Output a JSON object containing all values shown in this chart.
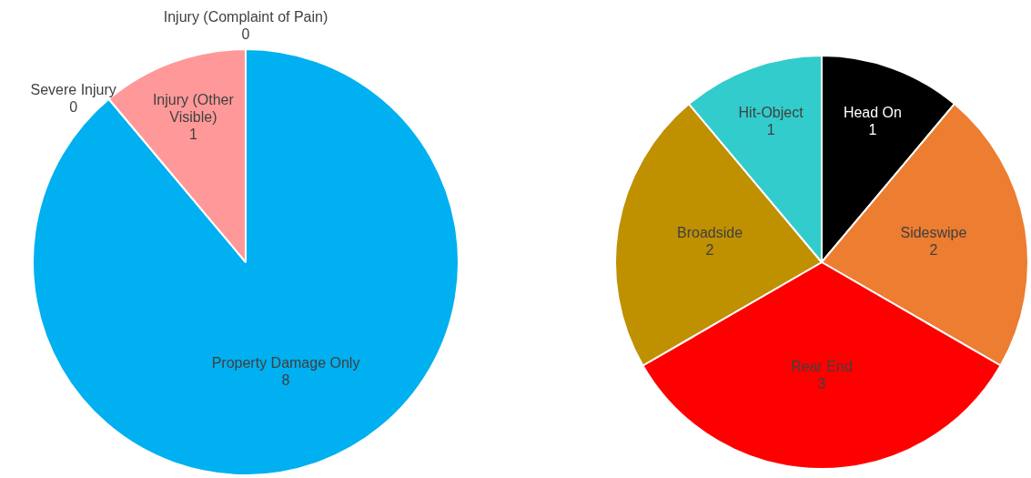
{
  "chart_data": [
    {
      "type": "pie",
      "categories": [
        "Property Damage Only",
        "Injury (Other Visible)",
        "Severe Injury",
        "Injury (Complaint of Pain)"
      ],
      "values": [
        8,
        1,
        0,
        0
      ],
      "colors": [
        "#00b0f0",
        "#ff9999",
        "#ff9999",
        "#ff9999"
      ],
      "value_labels": [
        "8",
        "1",
        "0",
        "0"
      ]
    },
    {
      "type": "pie",
      "categories": [
        "Head On",
        "Sideswipe",
        "Rear End",
        "Broadside",
        "Hit-Object"
      ],
      "values": [
        1,
        2,
        3,
        2,
        1
      ],
      "colors": [
        "#000000",
        "#ed7d31",
        "#ff0000",
        "#bf9000",
        "#33cccc"
      ],
      "data_labels": true
    }
  ]
}
